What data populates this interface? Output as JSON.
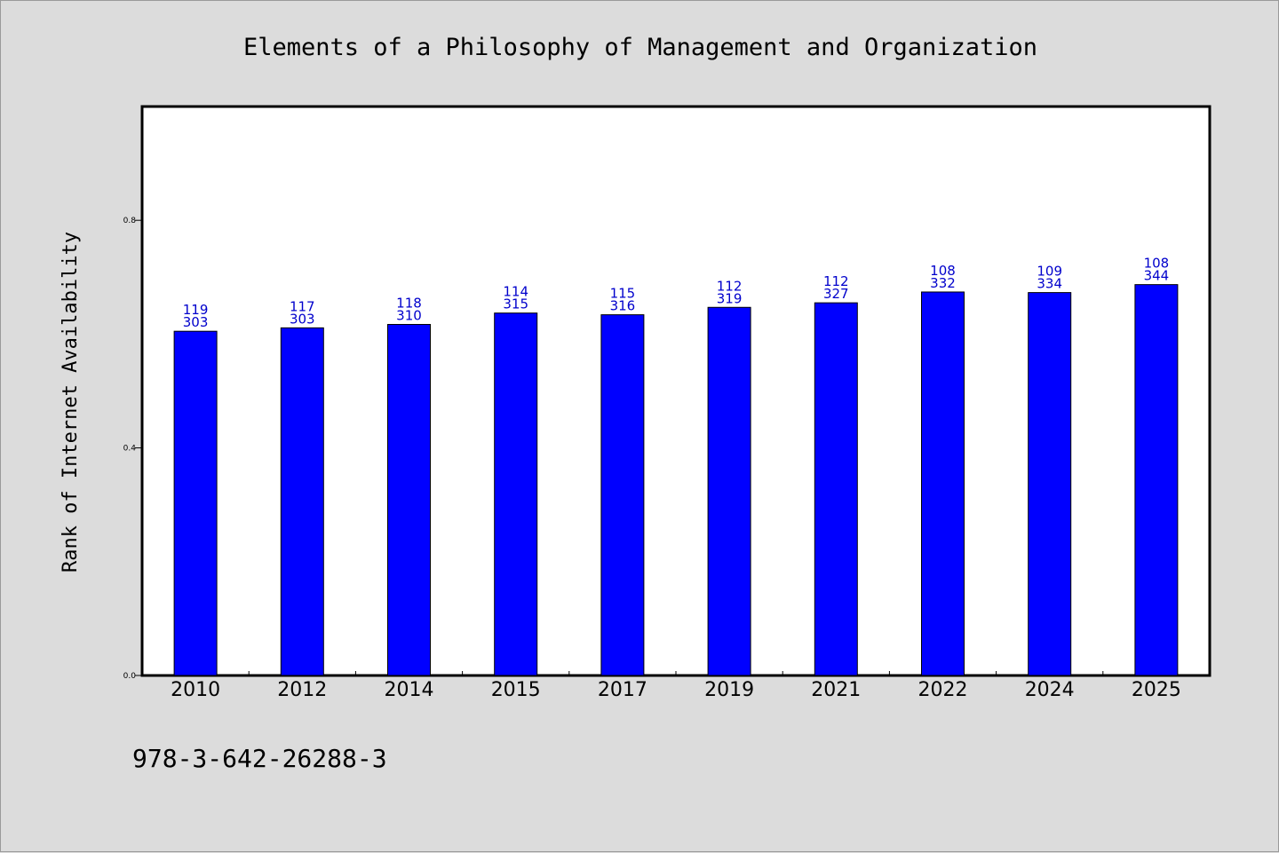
{
  "chart_data": {
    "type": "bar",
    "title": "Elements of a Philosophy of Management and Organization",
    "ylabel": "Rank of Internet Availability",
    "xlabel": "",
    "ylim": [
      0,
      1.0
    ],
    "yticks": [
      "0.0",
      "0.4",
      "0.8"
    ],
    "categories": [
      "2010",
      "2012",
      "2014",
      "2015",
      "2017",
      "2019",
      "2021",
      "2022",
      "2024",
      "2025"
    ],
    "values": [
      0.605,
      0.611,
      0.617,
      0.637,
      0.634,
      0.647,
      0.655,
      0.674,
      0.673,
      0.687
    ],
    "labels_top": [
      "119",
      "117",
      "118",
      "114",
      "115",
      "112",
      "112",
      "108",
      "109",
      "108"
    ],
    "labels_bottom": [
      "303",
      "303",
      "310",
      "315",
      "316",
      "319",
      "327",
      "332",
      "334",
      "344"
    ],
    "bar_color": "#0000ff",
    "label_color": "#0000cc",
    "grid": false,
    "legend": "none"
  },
  "footnote": "978-3-642-26288-3"
}
